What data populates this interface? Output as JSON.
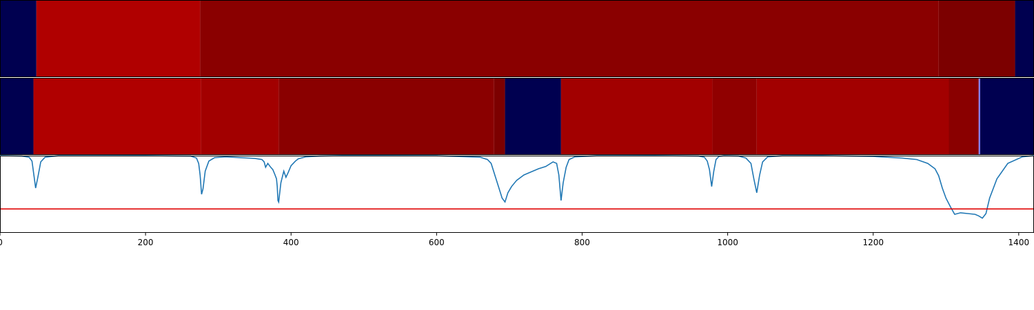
{
  "chart_data": [
    {
      "type": "heatmap",
      "xlim": [
        0,
        1421
      ],
      "segments": [
        {
          "start": 0,
          "end": 50,
          "color": "#000050"
        },
        {
          "start": 50,
          "end": 275,
          "color": "#b00000"
        },
        {
          "start": 275,
          "end": 1290,
          "color": "#8a0000"
        },
        {
          "start": 1290,
          "end": 1395,
          "color": "#7c0000"
        },
        {
          "start": 1395,
          "end": 1421,
          "color": "#000050"
        }
      ]
    },
    {
      "type": "heatmap",
      "xlim": [
        0,
        1421
      ],
      "segments": [
        {
          "start": 0,
          "end": 46,
          "color": "#000050"
        },
        {
          "start": 46,
          "end": 276,
          "color": "#b00000"
        },
        {
          "start": 276,
          "end": 383,
          "color": "#a20000"
        },
        {
          "start": 383,
          "end": 679,
          "color": "#8a0000"
        },
        {
          "start": 679,
          "end": 694,
          "color": "#7c0000"
        },
        {
          "start": 694,
          "end": 771,
          "color": "#000050"
        },
        {
          "start": 771,
          "end": 979,
          "color": "#a20000"
        },
        {
          "start": 979,
          "end": 1040,
          "color": "#900000"
        },
        {
          "start": 1040,
          "end": 1304,
          "color": "#a20000"
        },
        {
          "start": 1304,
          "end": 1345,
          "color": "#8a0000"
        },
        {
          "start": 1345,
          "end": 1347,
          "color": "#8080ff"
        },
        {
          "start": 1347,
          "end": 1421,
          "color": "#000050"
        }
      ]
    },
    {
      "type": "line",
      "xlim": [
        0,
        1421
      ],
      "ylim": [
        0,
        1
      ],
      "xticks": [
        "0",
        "200",
        "400",
        "600",
        "800",
        "1000",
        "1200",
        "1400"
      ],
      "xtick_values": [
        0,
        200,
        400,
        600,
        800,
        1000,
        1200,
        1400
      ],
      "threshold": 0.31,
      "threshold_color": "#e00000",
      "line_color": "#1f77b4",
      "series": [
        {
          "x": [
            0,
            30,
            40,
            44,
            47,
            49,
            52,
            56,
            62,
            80,
            200,
            262,
            270,
            273,
            275,
            277,
            279,
            282,
            287,
            295,
            310,
            330,
            350,
            360,
            363,
            365,
            368,
            372,
            375,
            378,
            380,
            381,
            382,
            383,
            384,
            386,
            390,
            393,
            396,
            400,
            403,
            406,
            410,
            420,
            440,
            470,
            520,
            600,
            660,
            670,
            675,
            680,
            685,
            690,
            694,
            698,
            703,
            710,
            720,
            740,
            750,
            760,
            765,
            768,
            771,
            774,
            778,
            782,
            790,
            820,
            900,
            960,
            968,
            972,
            975,
            978,
            981,
            984,
            988,
            995,
            1015,
            1025,
            1032,
            1036,
            1040,
            1044,
            1048,
            1055,
            1075,
            1130,
            1200,
            1240,
            1260,
            1275,
            1285,
            1290,
            1295,
            1300,
            1306,
            1312,
            1320,
            1330,
            1340,
            1345,
            1350,
            1355,
            1360,
            1370,
            1385,
            1405,
            1421
          ],
          "y": [
            1.0,
            0.995,
            0.98,
            0.93,
            0.72,
            0.58,
            0.72,
            0.92,
            0.98,
            0.998,
            1.0,
            0.995,
            0.97,
            0.9,
            0.75,
            0.5,
            0.57,
            0.8,
            0.93,
            0.975,
            0.985,
            0.975,
            0.965,
            0.95,
            0.92,
            0.85,
            0.9,
            0.85,
            0.82,
            0.75,
            0.7,
            0.6,
            0.42,
            0.4,
            0.48,
            0.65,
            0.8,
            0.72,
            0.78,
            0.87,
            0.9,
            0.93,
            0.96,
            0.985,
            0.995,
            1.0,
            1.0,
            0.998,
            0.98,
            0.95,
            0.9,
            0.75,
            0.6,
            0.45,
            0.4,
            0.52,
            0.6,
            0.68,
            0.75,
            0.83,
            0.86,
            0.92,
            0.9,
            0.75,
            0.42,
            0.65,
            0.85,
            0.95,
            0.985,
            0.998,
            1.0,
            0.995,
            0.98,
            0.93,
            0.82,
            0.6,
            0.8,
            0.95,
            0.99,
            0.998,
            0.995,
            0.97,
            0.9,
            0.7,
            0.52,
            0.75,
            0.92,
            0.985,
            0.998,
            1.0,
            0.99,
            0.97,
            0.95,
            0.9,
            0.83,
            0.74,
            0.58,
            0.45,
            0.34,
            0.24,
            0.26,
            0.25,
            0.24,
            0.22,
            0.19,
            0.25,
            0.45,
            0.7,
            0.9,
            0.985,
            1.0
          ]
        }
      ]
    }
  ]
}
